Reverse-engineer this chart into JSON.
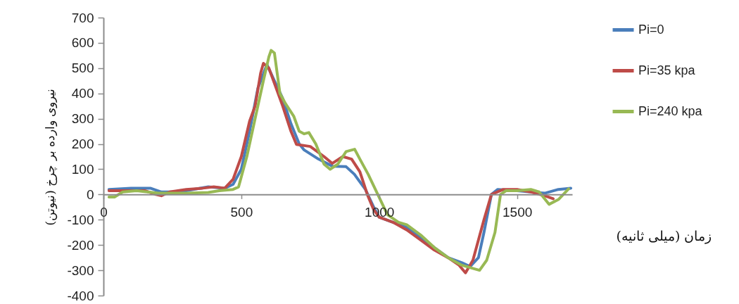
{
  "chart_data": {
    "type": "line",
    "xlabel": "زمان (میلی ثانیه)",
    "ylabel": "نیروی وارده بر چرخ (نیوتن)",
    "xlim": [
      0,
      1700
    ],
    "xticks": [
      0,
      500,
      1000,
      1500
    ],
    "ylim": [
      -400,
      700
    ],
    "yticks": [
      -400,
      -300,
      -200,
      -100,
      0,
      100,
      200,
      300,
      400,
      500,
      600,
      700
    ],
    "legend": "right",
    "series": [
      {
        "name": "Pi=0",
        "color": "#4a7ebb",
        "x": [
          20,
          100,
          170,
          210,
          250,
          300,
          380,
          440,
          470,
          500,
          530,
          560,
          593,
          620,
          650,
          680,
          710,
          728,
          780,
          830,
          880,
          910,
          950,
          980,
          1000,
          1050,
          1100,
          1150,
          1200,
          1250,
          1300,
          1330,
          1360,
          1380,
          1407,
          1430,
          1500,
          1550,
          1600,
          1650,
          1695
        ],
        "values": [
          20,
          25,
          25,
          10,
          10,
          15,
          30,
          25,
          40,
          100,
          250,
          420,
          514,
          450,
          380,
          280,
          200,
          176,
          140,
          112,
          110,
          80,
          20,
          -50,
          -90,
          -110,
          -130,
          -170,
          -210,
          -250,
          -270,
          -285,
          -250,
          -150,
          0,
          20,
          15,
          10,
          5,
          20,
          25
        ]
      },
      {
        "name": "Pi=35 kpa",
        "color": "#be4b48",
        "x": [
          20,
          80,
          150,
          190,
          210,
          240,
          300,
          360,
          400,
          440,
          470,
          500,
          530,
          550,
          570,
          580,
          600,
          620,
          650,
          680,
          700,
          750,
          800,
          830,
          868,
          900,
          930,
          957,
          980,
          1000,
          1050,
          1100,
          1150,
          1200,
          1250,
          1290,
          1313,
          1340,
          1380,
          1407,
          1450,
          1500,
          1550,
          1600,
          1631
        ],
        "values": [
          15,
          15,
          15,
          0,
          -5,
          10,
          20,
          25,
          30,
          25,
          60,
          150,
          290,
          350,
          480,
          519,
          500,
          440,
          350,
          250,
          198,
          190,
          150,
          123,
          150,
          140,
          90,
          0,
          -60,
          -90,
          -110,
          -140,
          -180,
          -220,
          -250,
          -280,
          -310,
          -260,
          -100,
          0,
          20,
          20,
          10,
          -5,
          -17
        ]
      },
      {
        "name": "Pi=240 kpa",
        "color": "#98b954",
        "x": [
          20,
          40,
          70,
          120,
          200,
          300,
          380,
          420,
          470,
          490,
          520,
          550,
          580,
          600,
          608,
          620,
          640,
          660,
          690,
          710,
          728,
          745,
          770,
          800,
          822,
          850,
          880,
          911,
          930,
          960,
          995,
          1030,
          1070,
          1100,
          1150,
          1200,
          1250,
          1300,
          1364,
          1390,
          1420,
          1440,
          1460,
          1500,
          1550,
          1580,
          1616,
          1650,
          1687
        ],
        "values": [
          -10,
          -10,
          10,
          15,
          5,
          5,
          8,
          15,
          20,
          30,
          150,
          300,
          450,
          545,
          570,
          560,
          400,
          360,
          310,
          250,
          240,
          245,
          200,
          120,
          100,
          120,
          170,
          179,
          140,
          80,
          0,
          -80,
          -110,
          -120,
          -160,
          -210,
          -250,
          -280,
          -300,
          -260,
          -150,
          0,
          15,
          15,
          20,
          10,
          -39,
          -20,
          22
        ]
      }
    ]
  }
}
